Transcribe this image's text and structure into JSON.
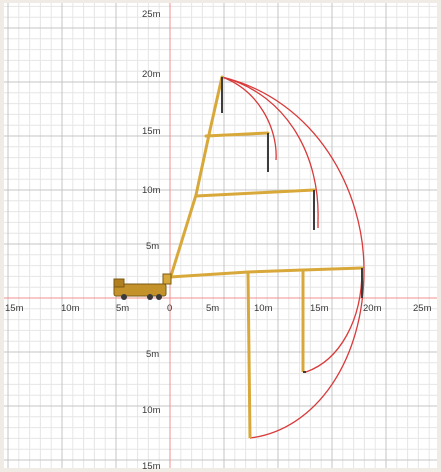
{
  "diagram": {
    "x_tick_labels": [
      "15m",
      "10m",
      "5m",
      "0",
      "5m",
      "10m",
      "15m",
      "20m",
      "25m"
    ],
    "y_tick_labels_up": [
      "25m",
      "20m",
      "15m",
      "10m",
      "5m"
    ],
    "y_tick_labels_down": [
      "5m",
      "10m",
      "15m"
    ],
    "colors": {
      "background": "#f1ebe6",
      "plot_area": "#ffffff",
      "grid_major": "#c4c4c4",
      "grid_minor": "#e6e6e6",
      "axis": "#f09090",
      "reach_arc": "#d93a3a",
      "boom": "#d8a93a",
      "boom_dark": "#8f6a1a",
      "hose": "#3c3c3c"
    },
    "icons": [
      "concrete-pump-truck-icon"
    ]
  }
}
